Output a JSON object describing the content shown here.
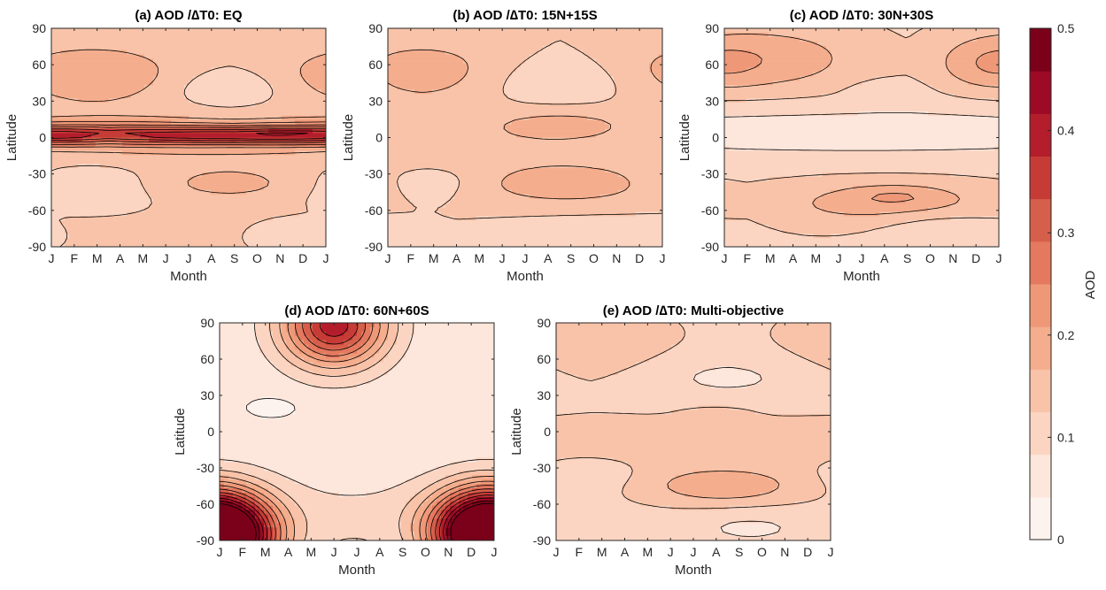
{
  "figure": {
    "colorbar": {
      "label": "AOD",
      "ticks": [
        "0",
        "0.1",
        "0.2",
        "0.3",
        "0.4",
        "0.5"
      ],
      "colors": [
        "#fdf3ee",
        "#fde6db",
        "#fbd5c2",
        "#f8c3a8",
        "#f4ad8d",
        "#ee9878",
        "#e4795f",
        "#d65f4b",
        "#c73b37",
        "#b41d2c",
        "#9c0a25",
        "#7b0019"
      ]
    },
    "axis_labels": {
      "x": "Month",
      "y": "Latitude"
    },
    "month_ticks": [
      "J",
      "F",
      "M",
      "A",
      "M",
      "J",
      "J",
      "A",
      "S",
      "O",
      "N",
      "D",
      "J"
    ],
    "lat_ticks": [
      "90",
      "60",
      "30",
      "0",
      "-30",
      "-60",
      "-90"
    ]
  },
  "chart_data": [
    {
      "type": "heatmap",
      "title": "(a) AOD /∆T0: EQ",
      "xlabel": "Month",
      "ylabel": "Latitude",
      "x": [
        "J",
        "F",
        "M",
        "A",
        "M",
        "J",
        "J",
        "A",
        "S",
        "O",
        "N",
        "D",
        "J"
      ],
      "y": [
        90,
        60,
        30,
        0,
        -30,
        -60,
        -90
      ],
      "ylim": [
        -90,
        90
      ],
      "features": {
        "base": 0.15,
        "blobs": [
          {
            "month": 8.5,
            "lat": 2,
            "sigma_month": 3.5,
            "sigma_lat": 5,
            "amp": 0.26
          },
          {
            "month": 2.0,
            "lat": 3,
            "sigma_month": 3.0,
            "sigma_lat": 6,
            "amp": 0.17
          },
          {
            "month": 6.0,
            "lat": 0,
            "sigma_month": 8.0,
            "sigma_lat": 14,
            "amp": 0.06
          },
          {
            "month": 1.8,
            "lat": 52,
            "sigma_month": 2.5,
            "sigma_lat": 16,
            "amp": 0.09
          },
          {
            "month": 7.7,
            "lat": 40,
            "sigma_month": 1.8,
            "sigma_lat": 12,
            "amp": -0.05
          },
          {
            "month": 7.7,
            "lat": -38,
            "sigma_month": 2.5,
            "sigma_lat": 9,
            "amp": 0.06
          },
          {
            "month": 1.8,
            "lat": -40,
            "sigma_month": 2.2,
            "sigma_lat": 14,
            "amp": -0.05
          },
          {
            "month": 10.5,
            "lat": -82,
            "sigma_month": 1.2,
            "sigma_lat": 9,
            "amp": -0.05
          }
        ]
      }
    },
    {
      "type": "heatmap",
      "title": "(b) AOD /∆T0: 15N+15S",
      "xlabel": "Month",
      "ylabel": "Latitude",
      "x": [
        "J",
        "F",
        "M",
        "A",
        "M",
        "J",
        "J",
        "A",
        "S",
        "O",
        "N",
        "D",
        "J"
      ],
      "y": [
        90,
        60,
        30,
        0,
        -30,
        -60,
        -90
      ],
      "ylim": [
        -90,
        90
      ],
      "features": {
        "base": 0.14,
        "blobs": [
          {
            "month": 7.5,
            "lat": 12,
            "sigma_month": 2.0,
            "sigma_lat": 8,
            "amp": 0.05
          },
          {
            "month": 6.0,
            "lat": -8,
            "sigma_month": 9.0,
            "sigma_lat": 20,
            "amp": 0.04
          },
          {
            "month": 1.5,
            "lat": 55,
            "sigma_month": 2.5,
            "sigma_lat": 18,
            "amp": 0.08
          },
          {
            "month": 7.5,
            "lat": 45,
            "sigma_month": 2.5,
            "sigma_lat": 14,
            "amp": -0.04
          },
          {
            "month": 7.8,
            "lat": -40,
            "sigma_month": 2.5,
            "sigma_lat": 10,
            "amp": 0.08
          },
          {
            "month": 1.8,
            "lat": -35,
            "sigma_month": 1.5,
            "sigma_lat": 10,
            "amp": -0.04
          },
          {
            "month": 9.0,
            "lat": -85,
            "sigma_month": 2.5,
            "sigma_lat": 10,
            "amp": -0.05
          }
        ]
      }
    },
    {
      "type": "heatmap",
      "title": "(c) AOD /∆T0: 30N+30S",
      "xlabel": "Month",
      "ylabel": "Latitude",
      "x": [
        "J",
        "F",
        "M",
        "A",
        "M",
        "J",
        "J",
        "A",
        "S",
        "O",
        "N",
        "D",
        "J"
      ],
      "y": [
        90,
        60,
        30,
        0,
        -30,
        -60,
        -90
      ],
      "ylim": [
        -90,
        90
      ],
      "features": {
        "base": 0.13,
        "blobs": [
          {
            "month": 6.0,
            "lat": 5,
            "sigma_month": 12.0,
            "sigma_lat": 15,
            "amp": -0.07
          },
          {
            "month": 2.0,
            "lat": 65,
            "sigma_month": 3.0,
            "sigma_lat": 20,
            "amp": 0.09
          },
          {
            "month": 11.5,
            "lat": 60,
            "sigma_month": 1.5,
            "sigma_lat": 15,
            "amp": 0.06
          },
          {
            "month": 7.0,
            "lat": 38,
            "sigma_month": 1.0,
            "sigma_lat": 6,
            "amp": -0.04
          },
          {
            "month": 7.0,
            "lat": -55,
            "sigma_month": 4.0,
            "sigma_lat": 14,
            "amp": 0.08
          },
          {
            "month": 7.5,
            "lat": -48,
            "sigma_month": 1.5,
            "sigma_lat": 6,
            "amp": 0.05
          },
          {
            "month": 9.5,
            "lat": -75,
            "sigma_month": 2.0,
            "sigma_lat": 10,
            "amp": -0.05
          }
        ]
      }
    },
    {
      "type": "heatmap",
      "title": "(d) AOD /∆T0: 60N+60S",
      "xlabel": "Month",
      "ylabel": "Latitude",
      "x": [
        "J",
        "F",
        "M",
        "A",
        "M",
        "J",
        "J",
        "A",
        "S",
        "O",
        "N",
        "D",
        "J"
      ],
      "y": [
        90,
        60,
        30,
        0,
        -30,
        -60,
        -90
      ],
      "ylim": [
        -90,
        90
      ],
      "features": {
        "base": 0.05,
        "blobs": [
          {
            "month": 5.0,
            "lat": 88,
            "sigma_month": 1.6,
            "sigma_lat": 24,
            "amp": 0.42
          },
          {
            "month": 0.2,
            "lat": -88,
            "sigma_month": 1.6,
            "sigma_lat": 24,
            "amp": 0.46
          },
          {
            "month": 11.5,
            "lat": -82,
            "sigma_month": 1.6,
            "sigma_lat": 24,
            "amp": 0.46
          },
          {
            "month": 6.0,
            "lat": -70,
            "sigma_month": 7.0,
            "sigma_lat": 25,
            "amp": 0.05
          },
          {
            "month": 2.3,
            "lat": 20,
            "sigma_month": 0.7,
            "sigma_lat": 5,
            "amp": -0.04
          }
        ]
      }
    },
    {
      "type": "heatmap",
      "title": "(e) AOD /∆T0: Multi-objective",
      "xlabel": "Month",
      "ylabel": "Latitude",
      "x": [
        "J",
        "F",
        "M",
        "A",
        "M",
        "J",
        "J",
        "A",
        "S",
        "O",
        "N",
        "D",
        "J"
      ],
      "y": [
        90,
        60,
        30,
        0,
        -30,
        -60,
        -90
      ],
      "ylim": [
        -90,
        90
      ],
      "features": {
        "base": 0.13,
        "blobs": [
          {
            "month": 1.5,
            "lat": 72,
            "sigma_month": 2.5,
            "sigma_lat": 20,
            "amp": 0.05
          },
          {
            "month": 7.5,
            "lat": 45,
            "sigma_month": 3.0,
            "sigma_lat": 14,
            "amp": -0.05
          },
          {
            "month": 7.0,
            "lat": 15,
            "sigma_month": 1.0,
            "sigma_lat": 4,
            "amp": 0.03
          },
          {
            "month": 6.0,
            "lat": -10,
            "sigma_month": 10.0,
            "sigma_lat": 18,
            "amp": 0.03
          },
          {
            "month": 7.3,
            "lat": -45,
            "sigma_month": 2.3,
            "sigma_lat": 10,
            "amp": 0.1
          },
          {
            "month": 1.5,
            "lat": -35,
            "sigma_month": 1.5,
            "sigma_lat": 10,
            "amp": -0.03
          },
          {
            "month": 8.5,
            "lat": -80,
            "sigma_month": 2.0,
            "sigma_lat": 10,
            "amp": -0.05
          }
        ]
      }
    }
  ]
}
